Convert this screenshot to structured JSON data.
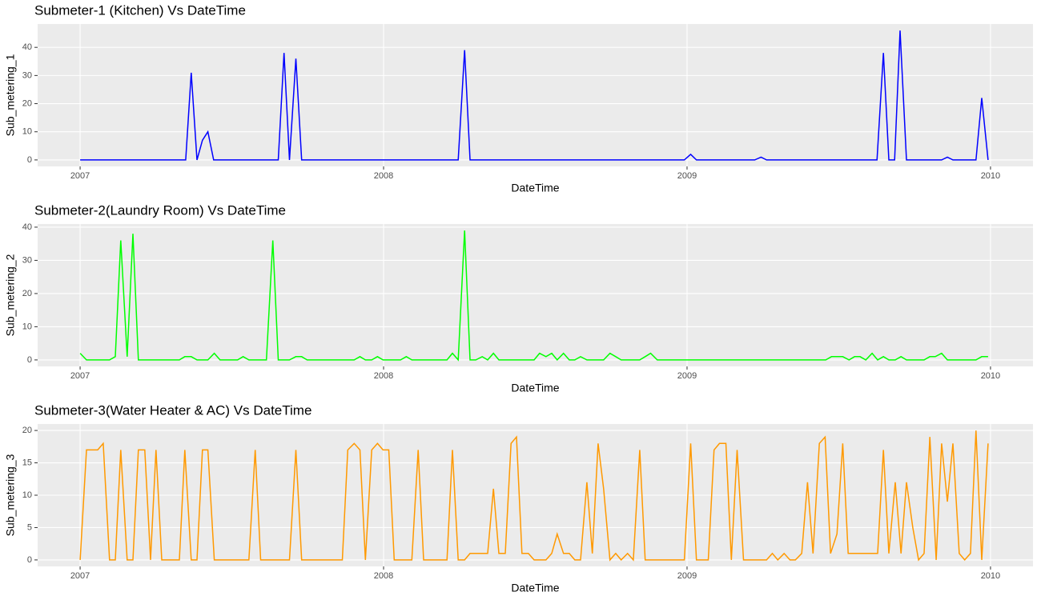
{
  "chart_data": [
    {
      "type": "line",
      "title": "Submeter-1 (Kitchen) Vs DateTime",
      "xlabel": "DateTime",
      "ylabel": "Sub_metering_1",
      "color": "#0000ff",
      "grid": true,
      "xlim": [
        2006.86,
        2010.14
      ],
      "xticks": [
        2007,
        2008,
        2009,
        2010
      ],
      "ylim": [
        -2.3,
        48.3
      ],
      "yticks": [
        0,
        10,
        20,
        30,
        40
      ],
      "x": [
        2007.0,
        2007.348,
        2007.366,
        2007.385,
        2007.403,
        2007.421,
        2007.44,
        2007.653,
        2007.672,
        2007.69,
        2007.711,
        2007.73,
        2008.246,
        2008.267,
        2008.285,
        2008.991,
        2009.012,
        2009.031,
        2009.223,
        2009.244,
        2009.262,
        2009.626,
        2009.647,
        2009.665,
        2009.684,
        2009.702,
        2009.723,
        2009.839,
        2009.858,
        2009.876,
        2009.952,
        2009.971,
        2009.992
      ],
      "values": [
        0,
        0,
        31,
        0,
        7,
        10,
        0,
        0,
        38,
        0,
        36,
        0,
        0,
        39,
        0,
        0,
        2,
        0,
        0,
        1,
        0,
        0,
        38,
        0,
        0,
        46,
        0,
        0,
        1,
        0,
        0,
        22,
        0
      ]
    },
    {
      "type": "line",
      "title": "Submeter-2(Laundry Room) Vs DateTime",
      "xlabel": "DateTime",
      "ylabel": "Sub_metering_2",
      "color": "#00ff00",
      "grid": true,
      "xlim": [
        2006.86,
        2010.14
      ],
      "xticks": [
        2007,
        2008,
        2009,
        2010
      ],
      "ylim": [
        -1.95,
        40.95
      ],
      "yticks": [
        0,
        10,
        20,
        30,
        40
      ],
      "x": [
        2007.0,
        2007.021,
        2007.097,
        2007.116,
        2007.134,
        2007.155,
        2007.174,
        2007.192,
        2007.327,
        2007.345,
        2007.366,
        2007.385,
        2007.421,
        2007.442,
        2007.461,
        2007.519,
        2007.537,
        2007.556,
        2007.614,
        2007.635,
        2007.653,
        2007.69,
        2007.711,
        2007.73,
        2007.748,
        2007.903,
        2007.922,
        2007.94,
        2007.961,
        2007.98,
        2007.998,
        2008.056,
        2008.075,
        2008.093,
        2008.209,
        2008.227,
        2008.246,
        2008.267,
        2008.285,
        2008.304,
        2008.325,
        2008.343,
        2008.362,
        2008.38,
        2008.496,
        2008.514,
        2008.535,
        2008.554,
        2008.572,
        2008.593,
        2008.612,
        2008.63,
        2008.649,
        2008.67,
        2008.725,
        2008.746,
        2008.765,
        2008.783,
        2008.844,
        2008.862,
        2008.88,
        2008.902,
        2009.457,
        2009.476,
        2009.513,
        2009.534,
        2009.552,
        2009.57,
        2009.589,
        2009.61,
        2009.628,
        2009.647,
        2009.665,
        2009.686,
        2009.705,
        2009.723,
        2009.781,
        2009.8,
        2009.818,
        2009.839,
        2009.858,
        2009.952,
        2009.971,
        2009.992
      ],
      "values": [
        2,
        0,
        0,
        1,
        36,
        1,
        38,
        0,
        0,
        1,
        1,
        0,
        0,
        2,
        0,
        0,
        1,
        0,
        0,
        36,
        0,
        0,
        1,
        1,
        0,
        0,
        1,
        0,
        0,
        1,
        0,
        0,
        1,
        0,
        0,
        2,
        0,
        39,
        0,
        0,
        1,
        0,
        2,
        0,
        0,
        2,
        1,
        2,
        0,
        2,
        0,
        0,
        1,
        0,
        0,
        2,
        1,
        0,
        0,
        1,
        2,
        0,
        0,
        1,
        1,
        0,
        1,
        1,
        0,
        2,
        0,
        1,
        0,
        0,
        1,
        0,
        0,
        1,
        1,
        2,
        0,
        0,
        1,
        1
      ]
    },
    {
      "type": "line",
      "title": "Submeter-3(Water Heater & AC) Vs DateTime",
      "xlabel": "DateTime",
      "ylabel": "Sub_metering_3",
      "color": "#ff9900",
      "grid": true,
      "xlim": [
        2006.86,
        2010.14
      ],
      "xticks": [
        2007,
        2008,
        2009,
        2010
      ],
      "ylim": [
        -1,
        21
      ],
      "yticks": [
        0,
        5,
        10,
        15,
        20
      ],
      "x": [
        2007.0,
        2007.021,
        2007.058,
        2007.076,
        2007.097,
        2007.116,
        2007.134,
        2007.155,
        2007.174,
        2007.192,
        2007.213,
        2007.232,
        2007.25,
        2007.269,
        2007.327,
        2007.345,
        2007.366,
        2007.385,
        2007.403,
        2007.421,
        2007.442,
        2007.556,
        2007.577,
        2007.595,
        2007.69,
        2007.711,
        2007.73,
        2007.864,
        2007.882,
        2007.903,
        2007.922,
        2007.94,
        2007.961,
        2007.98,
        2007.998,
        2008.017,
        2008.035,
        2008.093,
        2008.114,
        2008.132,
        2008.209,
        2008.227,
        2008.246,
        2008.267,
        2008.285,
        2008.343,
        2008.362,
        2008.38,
        2008.401,
        2008.42,
        2008.438,
        2008.456,
        2008.477,
        2008.496,
        2008.535,
        2008.554,
        2008.572,
        2008.593,
        2008.612,
        2008.63,
        2008.649,
        2008.67,
        2008.688,
        2008.707,
        2008.725,
        2008.746,
        2008.765,
        2008.783,
        2008.804,
        2008.823,
        2008.844,
        2008.862,
        2008.991,
        2009.012,
        2009.031,
        2009.07,
        2009.089,
        2009.107,
        2009.128,
        2009.146,
        2009.165,
        2009.186,
        2009.262,
        2009.281,
        2009.299,
        2009.32,
        2009.339,
        2009.357,
        2009.378,
        2009.397,
        2009.415,
        2009.436,
        2009.455,
        2009.473,
        2009.494,
        2009.513,
        2009.531,
        2009.628,
        2009.647,
        2009.665,
        2009.686,
        2009.705,
        2009.723,
        2009.744,
        2009.763,
        2009.781,
        2009.8,
        2009.821,
        2009.839,
        2009.858,
        2009.876,
        2009.897,
        2009.915,
        2009.934,
        2009.952,
        2009.971,
        2009.992
      ],
      "values": [
        0,
        17,
        17,
        18,
        0,
        0,
        17,
        0,
        0,
        17,
        17,
        0,
        17,
        0,
        0,
        17,
        0,
        0,
        17,
        17,
        0,
        0,
        17,
        0,
        0,
        17,
        0,
        0,
        17,
        18,
        17,
        0,
        17,
        18,
        17,
        17,
        0,
        0,
        17,
        0,
        0,
        17,
        0,
        0,
        1,
        1,
        11,
        1,
        1,
        18,
        19,
        1,
        1,
        0,
        0,
        1,
        4,
        1,
        1,
        0,
        0,
        12,
        1,
        18,
        11,
        0,
        1,
        0,
        1,
        0,
        17,
        0,
        0,
        18,
        0,
        0,
        17,
        18,
        18,
        0,
        17,
        0,
        0,
        1,
        0,
        1,
        0,
        0,
        1,
        12,
        1,
        18,
        19,
        1,
        4,
        18,
        1,
        1,
        17,
        1,
        12,
        1,
        12,
        5,
        0,
        1,
        19,
        0,
        18,
        9,
        18,
        1,
        0,
        1,
        20,
        0,
        18
      ]
    }
  ]
}
